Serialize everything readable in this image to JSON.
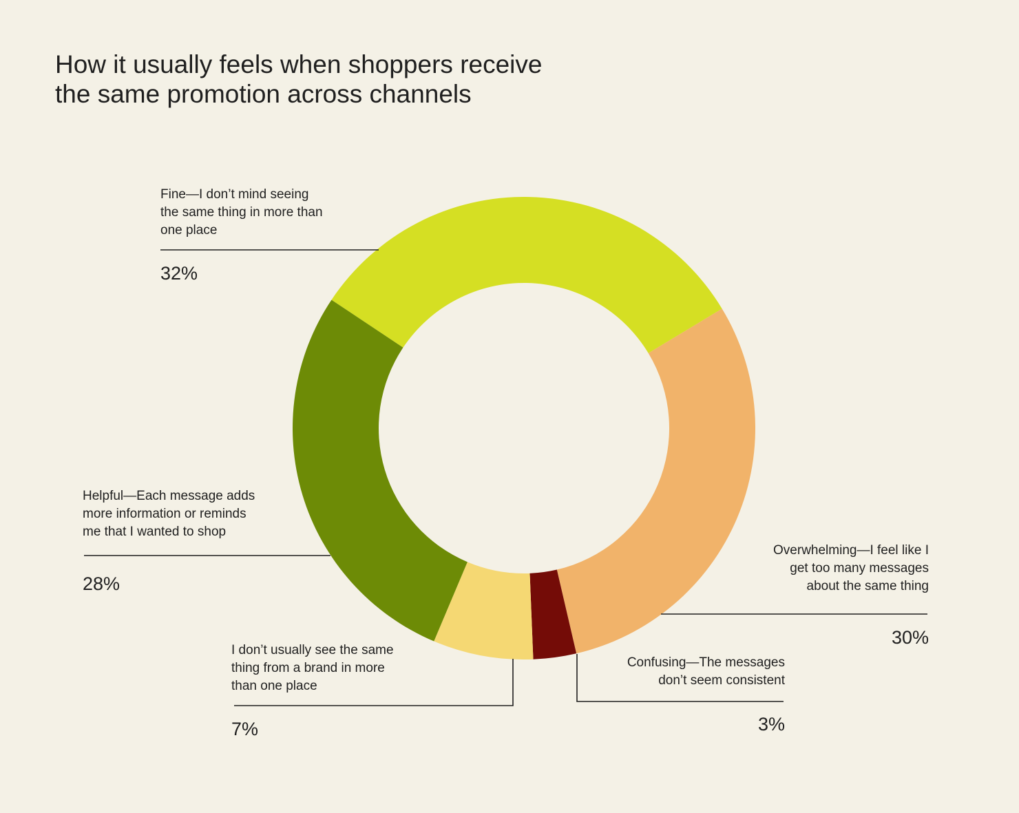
{
  "title_lines": [
    "How it usually feels when shoppers receive",
    "the same promotion across channels"
  ],
  "chart_data": {
    "type": "pie",
    "donut": true,
    "title": "How it usually feels when shoppers receive the same promotion across channels",
    "slices": [
      {
        "label_lines": [
          "Fine—I don’t mind seeing",
          "the same thing in more than",
          "one place"
        ],
        "value": 32,
        "value_label": "32%",
        "color": "#d5df23"
      },
      {
        "label_lines": [
          "Overwhelming—I feel like I",
          "get too many messages",
          "about the same thing"
        ],
        "value": 30,
        "value_label": "30%",
        "color": "#f1b36a"
      },
      {
        "label_lines": [
          "Confusing—The messages",
          "don’t seem consistent"
        ],
        "value": 3,
        "value_label": "3%",
        "color": "#740c07"
      },
      {
        "label_lines": [
          "I don’t usually see the same",
          "thing from a brand in more",
          "than one place"
        ],
        "value": 7,
        "value_label": "7%",
        "color": "#f5d873"
      },
      {
        "label_lines": [
          "Helpful—Each message adds",
          "more information or reminds",
          "me that I wanted to shop"
        ],
        "value": 28,
        "value_label": "28%",
        "color": "#6d8b06"
      }
    ]
  }
}
